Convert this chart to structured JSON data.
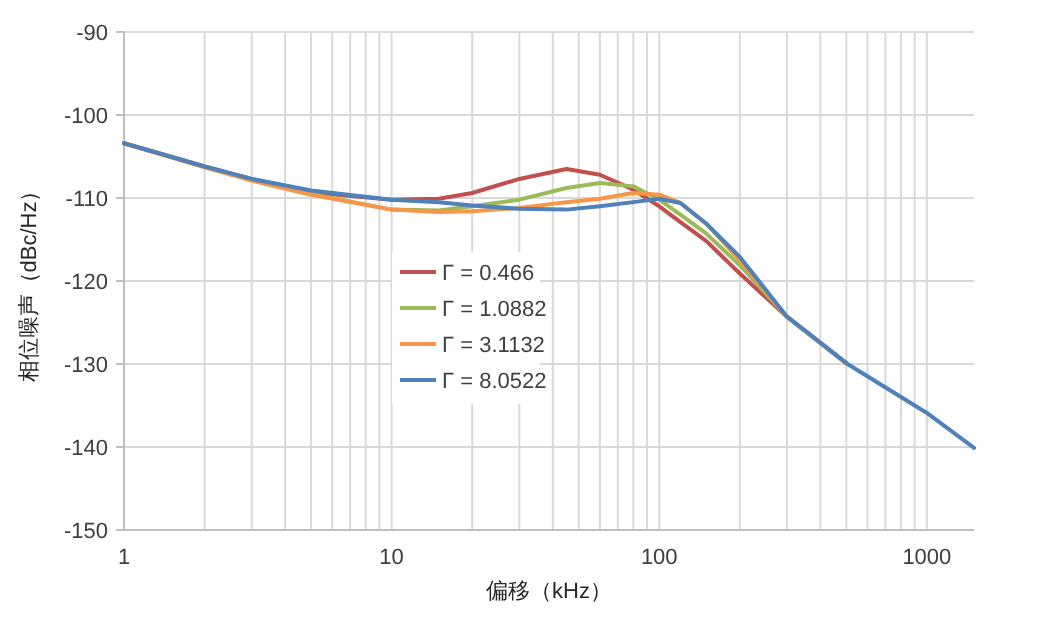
{
  "chart_data": {
    "type": "line",
    "xlabel": "偏移（kHz）",
    "ylabel": "相位噪声（dBc/Hz）",
    "log": "x",
    "grid": true,
    "legend": "center",
    "marker": "none",
    "line_style": "solid",
    "xlim": [
      1,
      1500
    ],
    "ylim": [
      -150,
      -90
    ],
    "xticks": [
      1,
      {
        "value": 2,
        "label": null
      },
      {
        "value": 3,
        "label": null
      },
      {
        "value": 4,
        "label": null
      },
      {
        "value": 5,
        "label": null
      },
      {
        "value": 6,
        "label": null
      },
      {
        "value": 7,
        "label": null
      },
      {
        "value": 8,
        "label": null
      },
      {
        "value": 9,
        "label": null
      },
      10,
      {
        "value": 20,
        "label": null
      },
      {
        "value": 30,
        "label": null
      },
      {
        "value": 40,
        "label": null
      },
      {
        "value": 50,
        "label": null
      },
      {
        "value": 60,
        "label": null
      },
      {
        "value": 70,
        "label": null
      },
      {
        "value": 80,
        "label": null
      },
      {
        "value": 90,
        "label": null
      },
      100,
      {
        "value": 200,
        "label": null
      },
      {
        "value": 300,
        "label": null
      },
      {
        "value": 400,
        "label": null
      },
      {
        "value": 500,
        "label": null
      },
      {
        "value": 600,
        "label": null
      },
      {
        "value": 700,
        "label": null
      },
      {
        "value": 800,
        "label": null
      },
      {
        "value": 900,
        "label": null
      },
      1000
    ],
    "yticks": [
      -90,
      -100,
      -110,
      -120,
      -130,
      -140,
      -150
    ],
    "x": [
      1,
      2,
      3,
      5,
      10,
      15,
      20,
      30,
      45,
      60,
      80,
      100,
      120,
      150,
      200,
      300,
      500,
      1000,
      1500
    ],
    "series": [
      {
        "name": "Γ = 0.466",
        "color": "#c0504d",
        "values": [
          -103.4,
          -106.2,
          -107.7,
          -109.3,
          -110.2,
          -110.1,
          -109.4,
          -107.7,
          -106.5,
          -107.2,
          -109.0,
          -111.0,
          -112.9,
          -115.2,
          -119.1,
          -124.3,
          -129.9,
          null,
          null
        ]
      },
      {
        "name": "Γ = 1.0882",
        "color": "#9bbb59",
        "values": [
          -103.4,
          -106.2,
          -107.8,
          -109.5,
          -111.4,
          -111.5,
          -111.0,
          -110.2,
          -108.8,
          -108.2,
          -108.6,
          -110.2,
          -112.0,
          -114.3,
          -118.1,
          -124.3,
          -129.9,
          null,
          null
        ]
      },
      {
        "name": "Γ = 3.1132",
        "color": "#f79646",
        "values": [
          -103.4,
          -106.3,
          -107.9,
          -109.6,
          -111.4,
          -111.7,
          -111.6,
          -111.2,
          -110.5,
          -110.1,
          -109.4,
          -109.6,
          -110.6,
          -113.1,
          -117.5,
          -124.3,
          -129.9,
          null,
          null
        ]
      },
      {
        "name": "Γ = 8.0522",
        "color": "#4f81bd",
        "values": [
          -103.4,
          -106.2,
          -107.7,
          -109.1,
          -110.2,
          -110.5,
          -110.9,
          -111.3,
          -111.4,
          -111.0,
          -110.5,
          -110.1,
          -110.6,
          -113.1,
          -117.1,
          -124.3,
          -129.9,
          -135.9,
          -140.1
        ]
      }
    ]
  }
}
